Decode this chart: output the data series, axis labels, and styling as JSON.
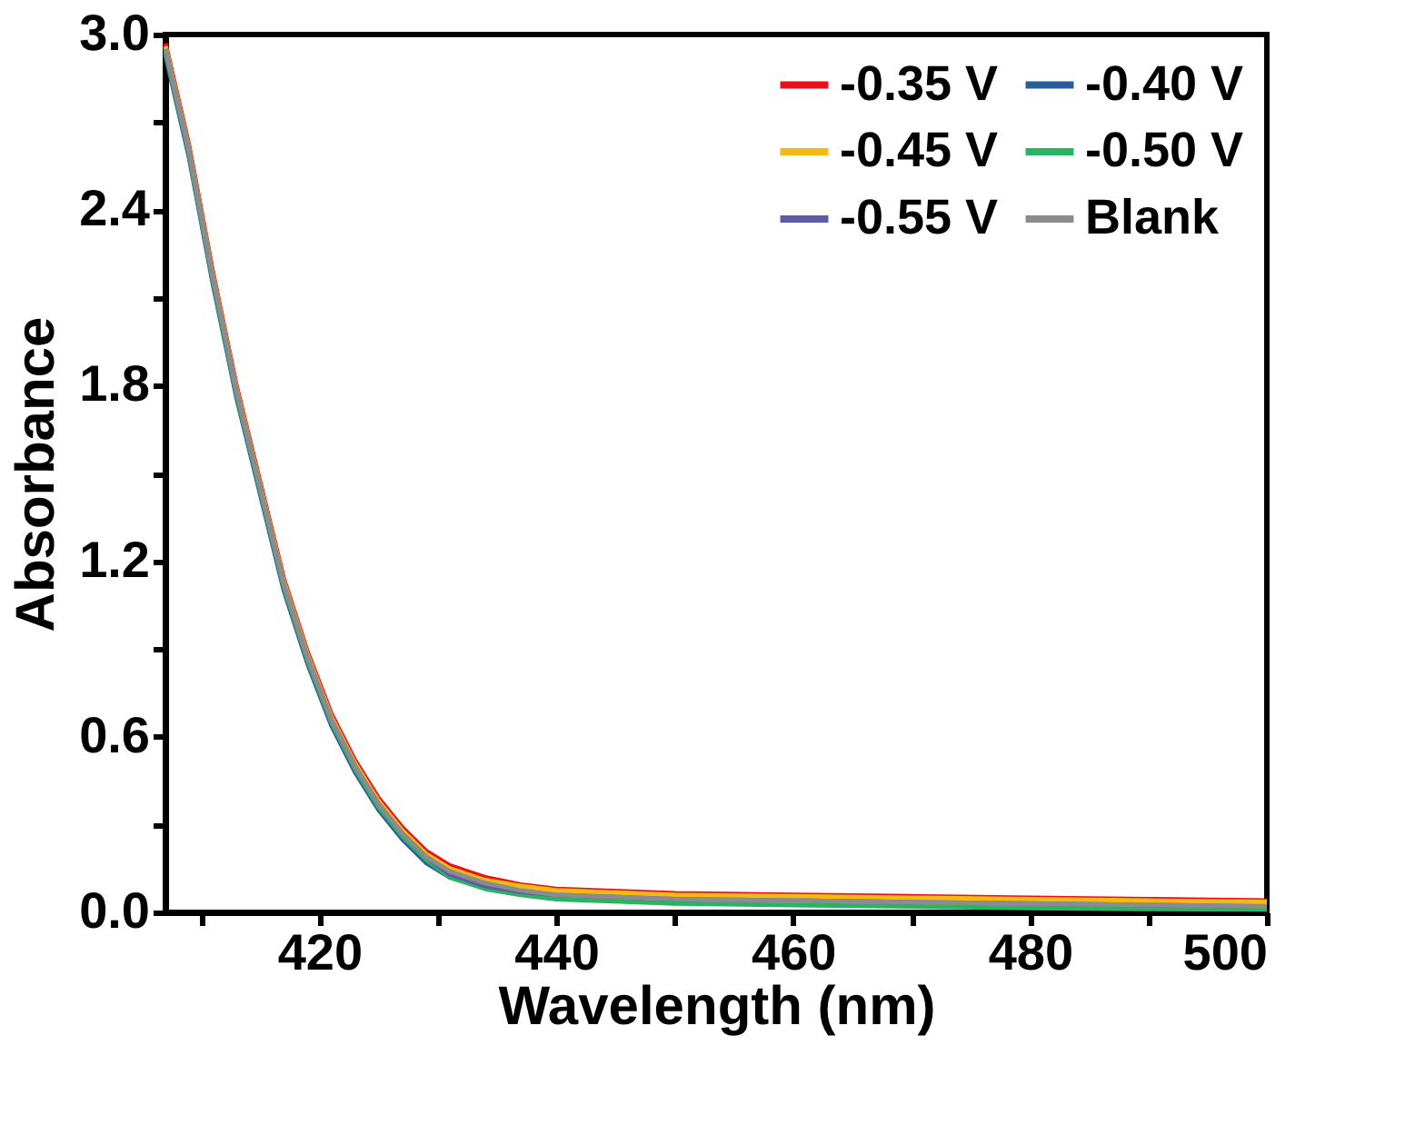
{
  "chart_data": {
    "type": "line",
    "xlabel": "Wavelength (nm)",
    "ylabel": "Absorbance",
    "x": [
      407,
      409,
      411,
      413,
      415,
      417,
      419,
      421,
      423,
      425,
      427,
      429,
      431,
      434,
      437,
      440,
      450,
      460,
      470,
      480,
      490,
      500
    ],
    "series": [
      {
        "name": "-0.35 V",
        "color": "#e8101a",
        "values": [
          2.97,
          2.62,
          2.19,
          1.8,
          1.47,
          1.14,
          0.89,
          0.68,
          0.52,
          0.39,
          0.29,
          0.21,
          0.16,
          0.12,
          0.095,
          0.08,
          0.065,
          0.06,
          0.055,
          0.05,
          0.045,
          0.04
        ]
      },
      {
        "name": "-0.40 V",
        "color": "#2a5d9a",
        "values": [
          2.93,
          2.58,
          2.15,
          1.76,
          1.43,
          1.1,
          0.85,
          0.64,
          0.48,
          0.35,
          0.25,
          0.17,
          0.12,
          0.085,
          0.065,
          0.05,
          0.035,
          null,
          null,
          null,
          null,
          null
        ]
      },
      {
        "name": "-0.45 V",
        "color": "#f5b914",
        "values": [
          2.96,
          2.61,
          2.18,
          1.79,
          1.46,
          1.13,
          0.88,
          0.67,
          0.51,
          0.38,
          0.28,
          0.2,
          0.15,
          0.11,
          0.09,
          0.075,
          0.06,
          0.055,
          0.05,
          0.045,
          0.04,
          0.036
        ]
      },
      {
        "name": "-0.50 V",
        "color": "#28b463",
        "values": [
          2.94,
          2.59,
          2.16,
          1.77,
          1.44,
          1.11,
          0.86,
          0.65,
          0.49,
          0.36,
          0.26,
          0.18,
          0.12,
          0.08,
          0.06,
          0.045,
          0.03,
          0.025,
          0.02,
          0.015,
          0.012,
          0.01
        ]
      },
      {
        "name": "-0.55 V",
        "color": "#5b5ea6",
        "values": [
          2.95,
          2.6,
          2.17,
          1.78,
          1.45,
          1.12,
          0.87,
          0.66,
          0.5,
          0.37,
          0.27,
          0.19,
          0.13,
          0.09,
          0.07,
          0.06,
          0.045,
          0.04,
          0.035,
          0.03,
          0.025,
          0.02
        ]
      },
      {
        "name": "Blank",
        "color": "#8c8c8c",
        "values": [
          2.95,
          2.6,
          2.17,
          1.78,
          1.45,
          1.12,
          0.87,
          0.66,
          0.5,
          0.37,
          0.27,
          0.19,
          0.14,
          0.1,
          0.075,
          0.06,
          0.045,
          0.04,
          0.035,
          0.03,
          0.025,
          0.02
        ]
      }
    ],
    "xlim": [
      407,
      500
    ],
    "xticks": [
      {
        "value": 410,
        "label": null
      },
      420,
      {
        "value": 430,
        "label": null
      },
      440,
      {
        "value": 450,
        "label": null
      },
      460,
      {
        "value": 470,
        "label": null
      },
      480,
      {
        "value": 490,
        "label": null
      },
      500
    ],
    "ylim": [
      0,
      3.0
    ],
    "yticks": [
      {
        "value": 0,
        "label": "0.0"
      },
      {
        "value": 0.3,
        "label": null
      },
      0.6,
      {
        "value": 0.9,
        "label": null
      },
      1.2,
      {
        "value": 1.5,
        "label": null
      },
      1.8,
      {
        "value": 2.1,
        "label": null
      },
      2.4,
      {
        "value": 2.7,
        "label": null
      },
      {
        "value": 3.0,
        "label": "3.0"
      }
    ],
    "grid": false,
    "legend": "top right",
    "marker": "none",
    "line_style": "solid"
  }
}
